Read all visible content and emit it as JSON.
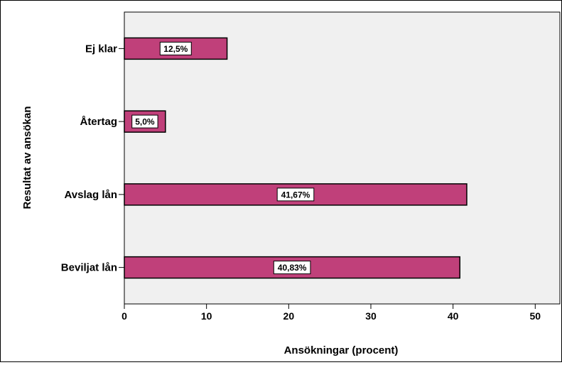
{
  "chart_data": {
    "type": "bar",
    "orientation": "horizontal",
    "categories": [
      "Ej klar",
      "Återtag",
      "Avslag lån",
      "Beviljat lån"
    ],
    "values": [
      12.5,
      5.0,
      41.67,
      40.83
    ],
    "data_labels": [
      "12,5%",
      "5,0%",
      "41,67%",
      "40,83%"
    ],
    "xlabel": "Ansökningar (procent)",
    "ylabel": "Resultat av ansökan",
    "xlim": [
      0,
      53
    ],
    "xticks": [
      0,
      10,
      20,
      30,
      40,
      50
    ],
    "grid": false,
    "colors": {
      "bar": "#c0407a",
      "plot_bg": "#f0f0f0"
    }
  }
}
